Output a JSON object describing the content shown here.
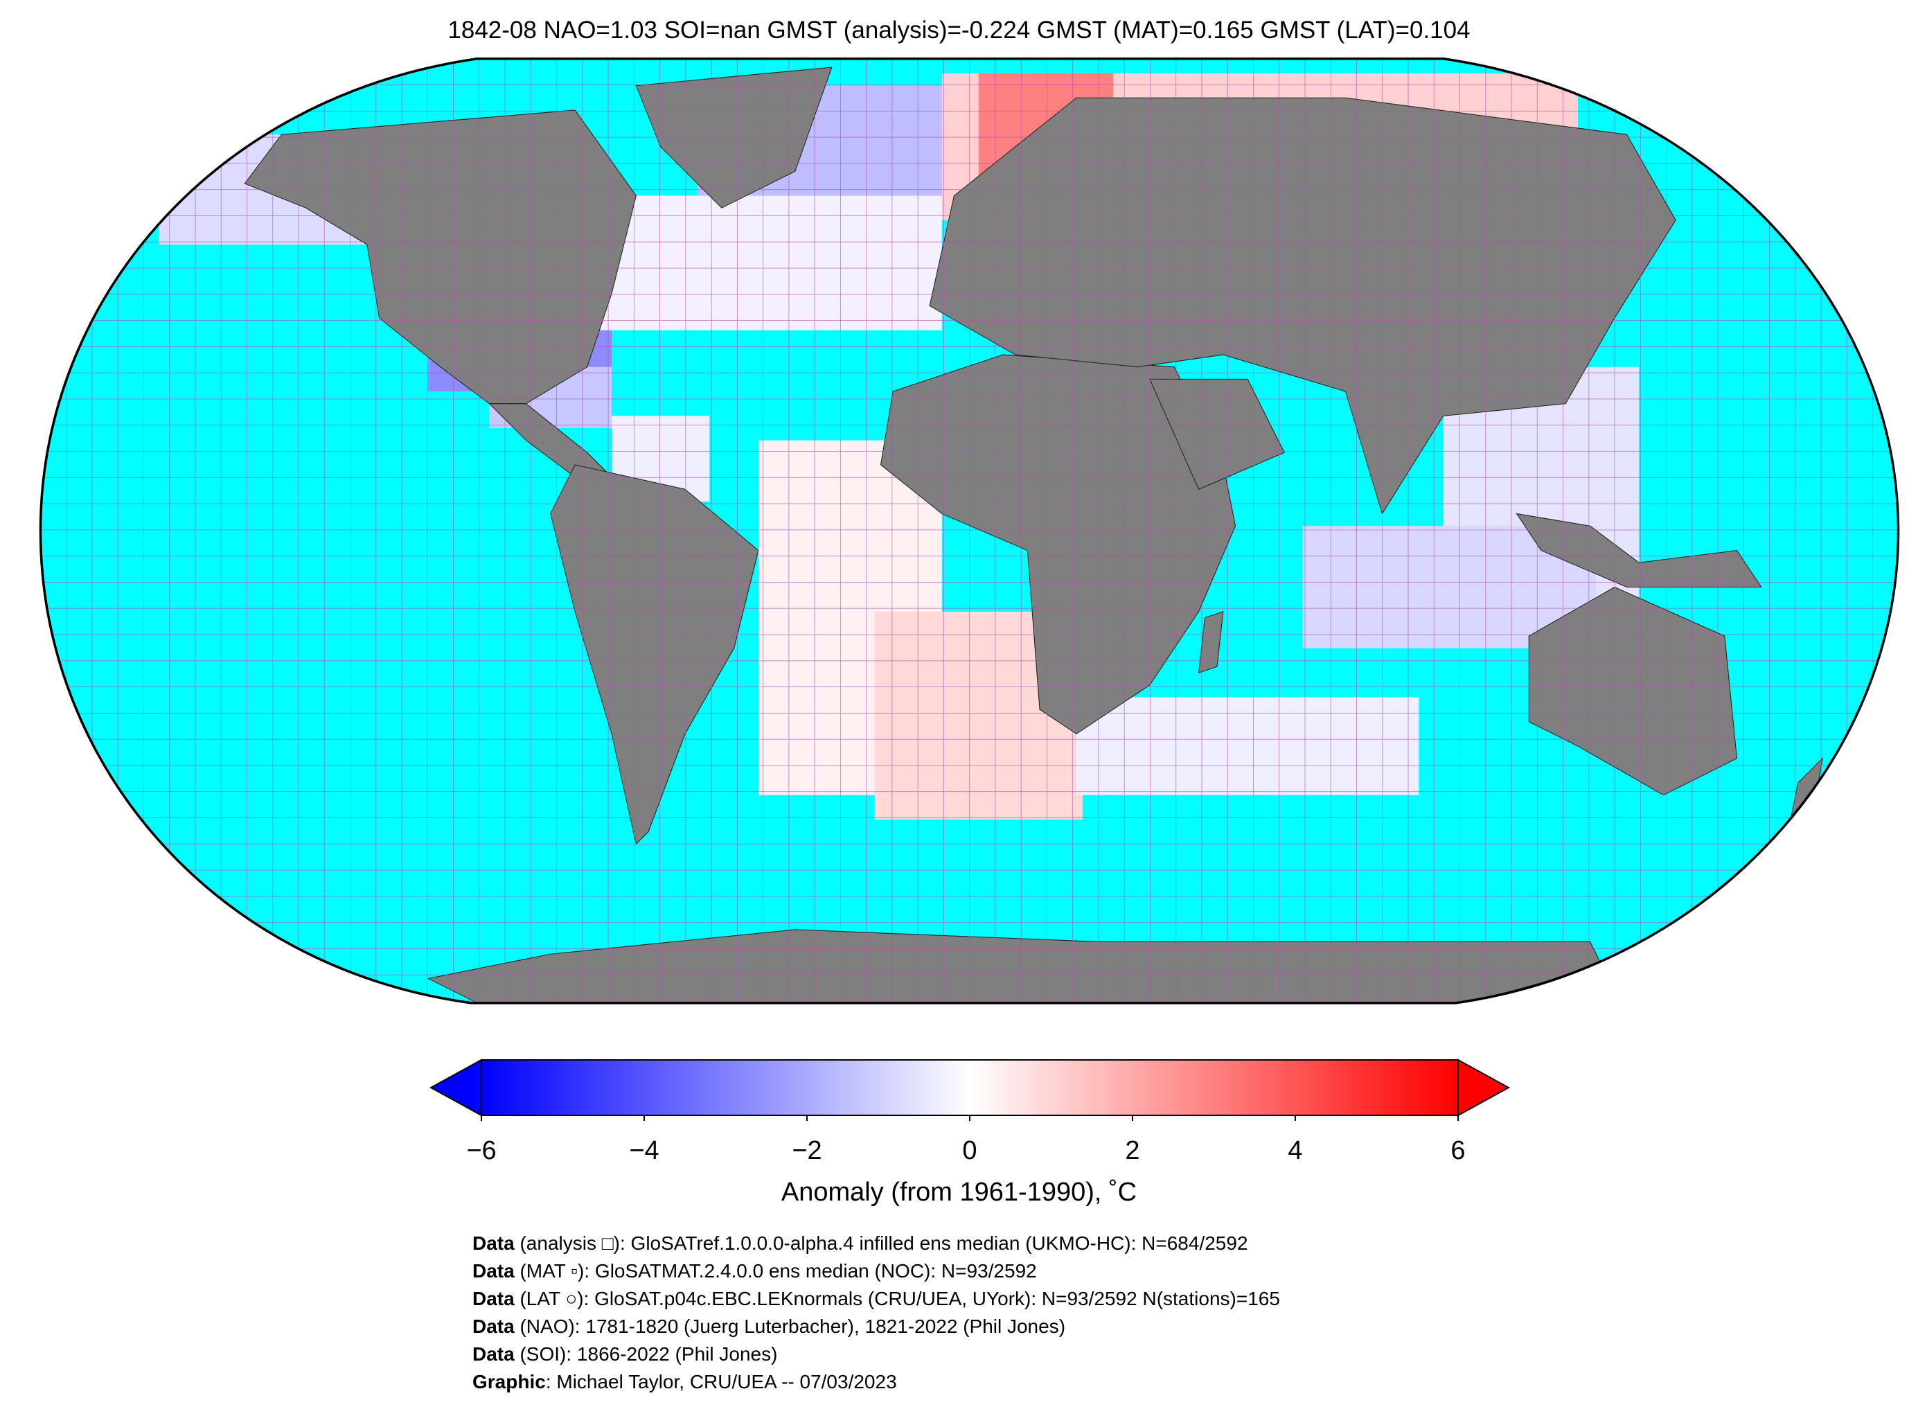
{
  "title": "1842-08 NAO=1.03 SOI=nan GMST (analysis)=-0.224 GMST (MAT)=0.165 GMST (LAT)=0.104",
  "colorbar": {
    "label": "Anomaly (from 1961-1990), ˚C",
    "ticks": [
      "−6",
      "−4",
      "−2",
      "0",
      "2",
      "4",
      "6"
    ],
    "tick_values": [
      -6,
      -4,
      -2,
      0,
      2,
      4,
      6
    ],
    "range": [
      -6,
      6
    ],
    "colors": {
      "low": "#0000ff",
      "mid": "#ffffff",
      "high": "#ff0000"
    }
  },
  "map_colors": {
    "ocean": "#00ffff",
    "land": "#7f7f7f",
    "grid": "#b04fb0"
  },
  "footer": [
    {
      "bold": "Data",
      "text": " (analysis □): GloSATref.1.0.0.0-alpha.4 infilled ens median (UKMO-HC): N=684/2592"
    },
    {
      "bold": "Data",
      "text": " (MAT ▫): GloSATMAT.2.4.0.0 ens median (NOC): N=93/2592"
    },
    {
      "bold": "Data",
      "text": " (LAT ○): GloSAT.p04c.EBC.LEKnormals (CRU/UEA, UYork): N=93/2592 N(stations)=165"
    },
    {
      "bold": "Data",
      "text": " (NAO): 1781-1820 (Juerg Luterbacher), 1821-2022 (Phil Jones)"
    },
    {
      "bold": "Data",
      "text": " (SOI): 1866-2022 (Phil Jones)"
    },
    {
      "bold": "Graphic",
      "text": ": Michael Taylor, CRU/UEA -- 07/03/2023"
    }
  ]
}
